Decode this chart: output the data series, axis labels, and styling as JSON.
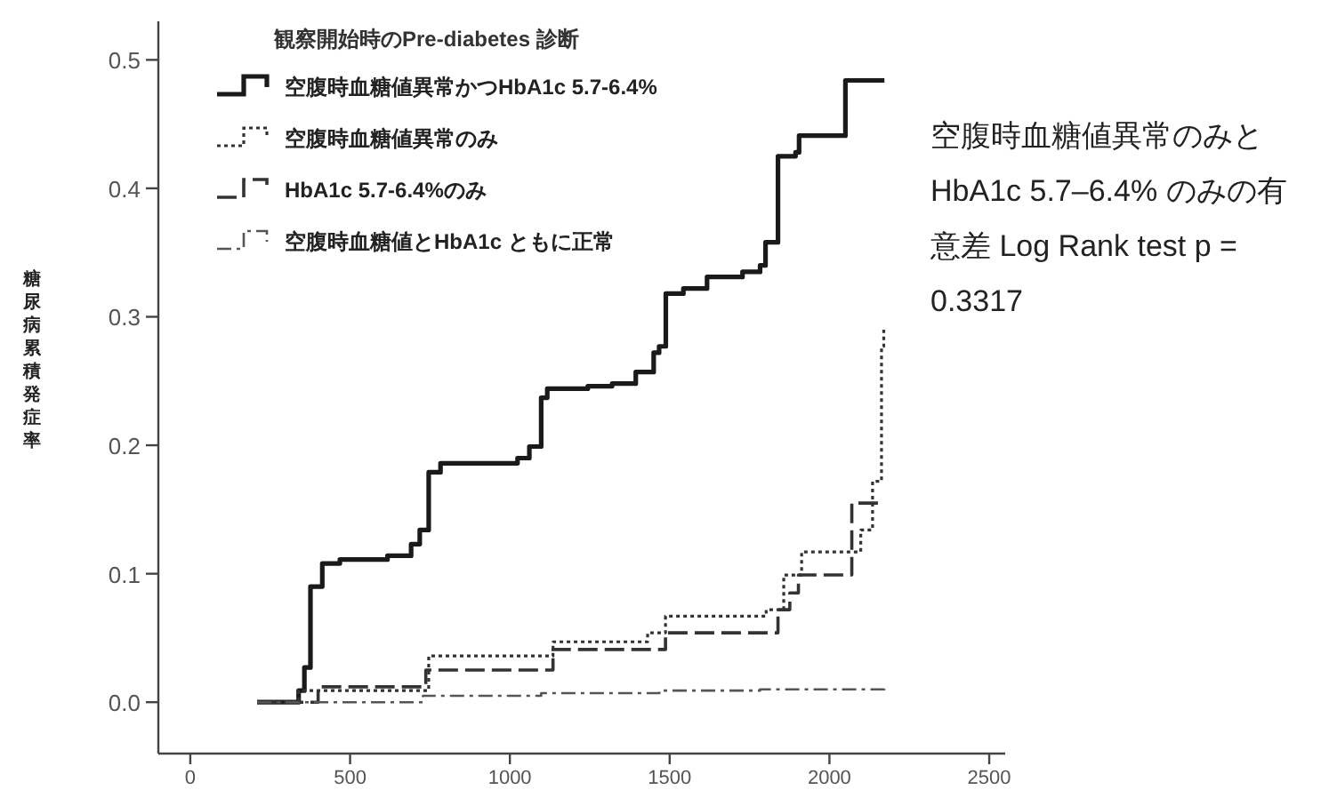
{
  "chart_data": {
    "type": "step",
    "ylabel": "糖尿病累積発症率",
    "legend_title": "観察開始時のPre-diabetes 診断",
    "xlim": [
      -100,
      2550
    ],
    "xticks": [
      0,
      500,
      1000,
      1500,
      2000,
      2500
    ],
    "ylim": [
      -0.04,
      0.53
    ],
    "yticks": [
      {
        "value": 0,
        "label": "0.0"
      },
      0.1,
      0.2,
      0.3,
      0.4,
      0.5
    ],
    "legend": "top left",
    "grid": false,
    "annotations": [
      "空腹時血糖値異常のみと HbA1c 5.7–6.4% のみの有意差 Log Rank test p = 0.3317"
    ],
    "series": [
      {
        "name": "空腹時血糖値異常かつHbA1c 5.7-6.4%",
        "color": "#1a1a1a",
        "line_style": "solid",
        "x": [
          209,
          339,
          357,
          376,
          413,
          468,
          617,
          691,
          718,
          746,
          783,
          1024,
          1061,
          1098,
          1117,
          1244,
          1320,
          1394,
          1450,
          1467,
          1488,
          1543,
          1617,
          1728,
          1783,
          1800,
          1839,
          1894,
          1905,
          2044,
          2050,
          2172
        ],
        "values": [
          0,
          0.009,
          0.027,
          0.09,
          0.108,
          0.111,
          0.114,
          0.123,
          0.134,
          0.179,
          0.186,
          0.19,
          0.199,
          0.237,
          0.244,
          0.246,
          0.248,
          0.257,
          0.272,
          0.277,
          0.318,
          0.322,
          0.331,
          0.335,
          0.34,
          0.358,
          0.425,
          0.428,
          0.441,
          0.441,
          0.484,
          0.484
        ]
      },
      {
        "name": "空腹時血糖値異常のみ",
        "color": "#333333",
        "line_style": "dotted",
        "x": [
          209,
          339,
          728,
          746,
          1061,
          1135,
          1431,
          1487,
          1802,
          1857,
          1913,
          2098,
          2135,
          2163,
          2170
        ],
        "values": [
          0,
          0.009,
          0.009,
          0.036,
          0.036,
          0.047,
          0.054,
          0.067,
          0.072,
          0.099,
          0.117,
          0.134,
          0.172,
          0.277,
          0.29
        ]
      },
      {
        "name": "HbA1c 5.7-6.4%のみ",
        "color": "#333333",
        "line_style": "dashed",
        "x": [
          209,
          400,
          737,
          1135,
          1487,
          1839,
          1876,
          1903,
          2070,
          2154,
          2170
        ],
        "values": [
          0,
          0.012,
          0.025,
          0.041,
          0.054,
          0.072,
          0.085,
          0.099,
          0.155,
          0.155,
          0.155
        ]
      },
      {
        "name": "空腹時血糖値とHbA1c ともに正常",
        "color": "#555555",
        "line_style": "dashdot",
        "x": [
          209,
          728,
          1098,
          1468,
          1783,
          2172
        ],
        "values": [
          0,
          0.005,
          0.007,
          0.009,
          0.01,
          0.012
        ]
      }
    ]
  }
}
